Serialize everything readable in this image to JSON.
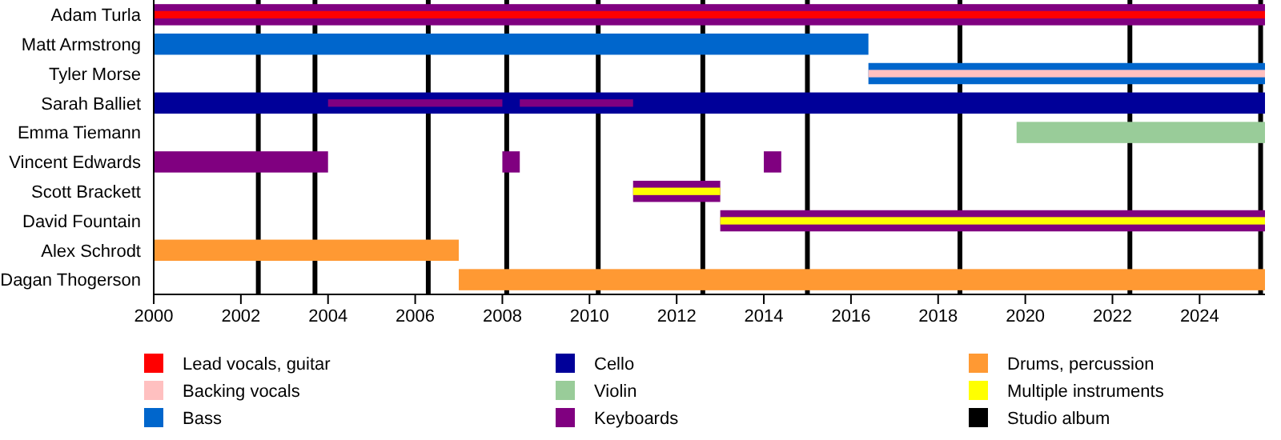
{
  "chart_data": {
    "type": "bar",
    "orientation": "horizontal",
    "categories": [
      "Adam Turla",
      "Matt Armstrong",
      "Tyler Morse",
      "Sarah Balliet",
      "Emma Tiemann",
      "Vincent Edwards",
      "Scott Brackett",
      "David Fountain",
      "Alex Schrodt",
      "Dagan Thogerson"
    ],
    "series": [
      {
        "name": "Lead vocals, guitar",
        "color": "#ff0000",
        "base": [
          2000,
          null,
          null,
          null,
          null,
          null,
          null,
          null,
          null,
          null
        ],
        "values": [
          25.5,
          null,
          null,
          null,
          null,
          null,
          null,
          null,
          null,
          null
        ]
      },
      {
        "name": "Backing vocals",
        "color": "#ffc0c0",
        "base": [
          null,
          null,
          2016.4,
          null,
          null,
          null,
          null,
          null,
          null,
          null
        ],
        "values": [
          null,
          null,
          9.1,
          null,
          null,
          null,
          null,
          null,
          null,
          null
        ]
      },
      {
        "name": "Bass",
        "color": "#0066cc",
        "base": [
          null,
          2000,
          2016.4,
          null,
          null,
          null,
          null,
          null,
          null,
          null
        ],
        "values": [
          null,
          16.4,
          9.1,
          null,
          null,
          null,
          null,
          null,
          null,
          null
        ]
      },
      {
        "name": "Cello",
        "color": "#000099",
        "base": [
          null,
          null,
          null,
          2000,
          null,
          null,
          null,
          null,
          null,
          null
        ],
        "values": [
          null,
          null,
          null,
          25.5,
          null,
          null,
          null,
          null,
          null,
          null
        ]
      },
      {
        "name": "Violin",
        "color": "#99cc99",
        "base": [
          null,
          null,
          null,
          null,
          2019.8,
          null,
          null,
          null,
          null,
          null
        ],
        "values": [
          null,
          null,
          null,
          null,
          5.7,
          null,
          null,
          null,
          null,
          null
        ]
      },
      {
        "name": "Keyboards",
        "color": "#800080",
        "base": [
          2000,
          null,
          null,
          2004,
          null,
          2000,
          2011,
          2013,
          null,
          null
        ],
        "values": [
          25.5,
          null,
          null,
          4,
          null,
          4,
          2,
          12.5,
          null,
          null
        ]
      },
      {
        "name": "Drums, percussion",
        "color": "#ff9933",
        "base": [
          null,
          null,
          null,
          null,
          null,
          null,
          null,
          null,
          2000,
          2007
        ],
        "values": [
          null,
          null,
          null,
          null,
          null,
          null,
          null,
          null,
          7,
          18.5
        ]
      },
      {
        "name": "Multiple instruments",
        "color": "#ffff00",
        "base": [
          null,
          null,
          null,
          null,
          null,
          null,
          2011,
          2013,
          null,
          null
        ],
        "values": [
          null,
          null,
          null,
          null,
          null,
          null,
          2,
          12.5,
          null,
          null
        ]
      },
      {
        "color": "#800080",
        "base": [
          null,
          null,
          null,
          2008.4,
          null,
          2008,
          null,
          null,
          null,
          null
        ],
        "values": [
          null,
          null,
          null,
          2.6,
          null,
          0.4,
          null,
          null,
          null,
          null
        ]
      },
      {
        "color": "#800080",
        "base": [
          null,
          null,
          null,
          null,
          null,
          2014,
          null,
          null,
          null,
          null
        ],
        "values": [
          null,
          null,
          null,
          null,
          null,
          0.4,
          null,
          null,
          null,
          null
        ]
      }
    ],
    "xlim": [
      2000,
      2025.5
    ],
    "xticks": [
      2000,
      2002,
      2004,
      2006,
      2008,
      2010,
      2012,
      2014,
      2016,
      2018,
      2020,
      2022,
      2024
    ],
    "ref_lines": [
      {
        "axis": "x",
        "value": 2002.4,
        "label": "Studio album",
        "color": "#000000"
      },
      {
        "axis": "x",
        "value": 2003.7,
        "color": "#000000"
      },
      {
        "axis": "x",
        "value": 2006.3,
        "color": "#000000"
      },
      {
        "axis": "x",
        "value": 2008.1,
        "color": "#000000"
      },
      {
        "axis": "x",
        "value": 2010.2,
        "color": "#000000"
      },
      {
        "axis": "x",
        "value": 2012.6,
        "color": "#000000"
      },
      {
        "axis": "x",
        "value": 2015.0,
        "color": "#000000"
      },
      {
        "axis": "x",
        "value": 2018.5,
        "color": "#000000"
      },
      {
        "axis": "x",
        "value": 2022.4,
        "color": "#000000"
      },
      {
        "axis": "x",
        "value": 2025.4,
        "color": "#000000"
      }
    ],
    "legend": "bottom"
  }
}
